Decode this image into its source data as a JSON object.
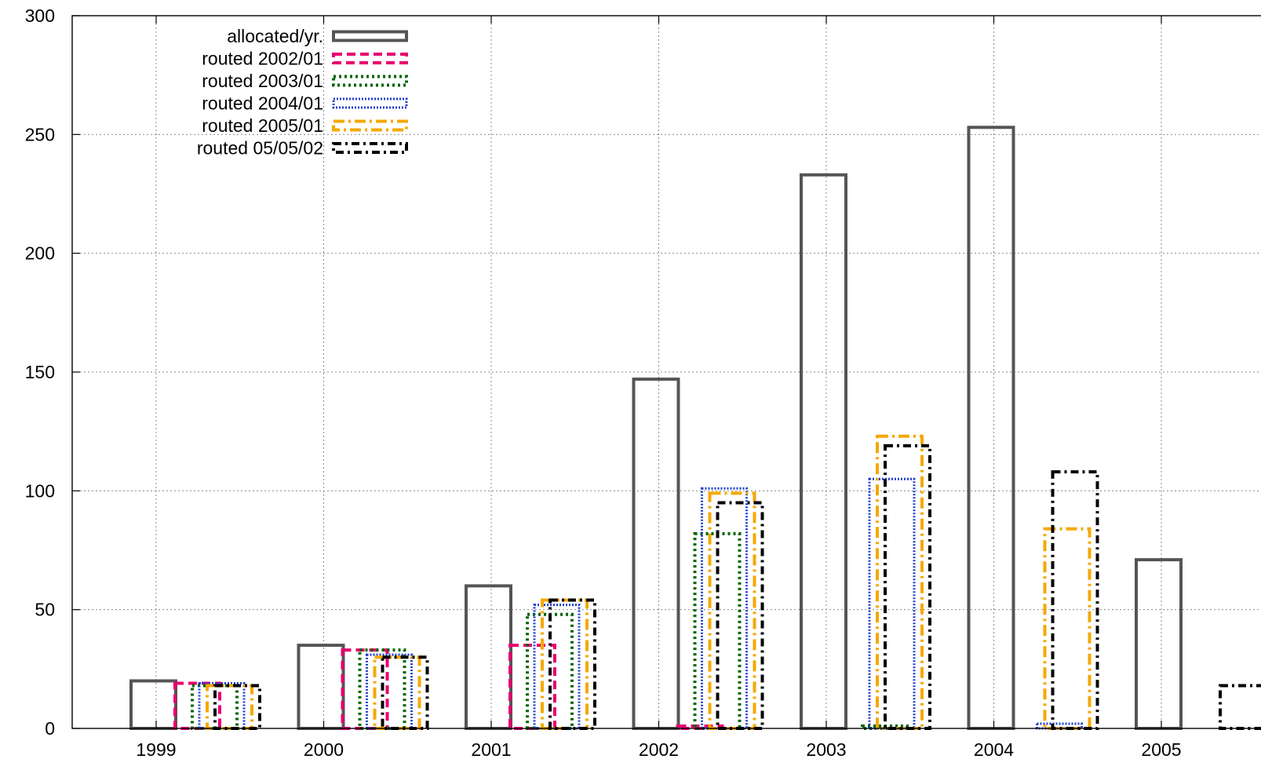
{
  "chart_data": {
    "type": "bar",
    "title": "",
    "xlabel": "",
    "ylabel": "",
    "ylim": [
      0,
      300
    ],
    "yticks": [
      "0",
      "50",
      "100",
      "150",
      "200",
      "250",
      "300"
    ],
    "categories": [
      "1999",
      "2000",
      "2001",
      "2002",
      "2003",
      "2004",
      "2005"
    ],
    "grid": true,
    "legend_position": "top-left",
    "series": [
      {
        "name": "allocated/yr.",
        "color": "#555555",
        "dash": "solid",
        "values": [
          20,
          35,
          60,
          147,
          233,
          253,
          71
        ]
      },
      {
        "name": "routed 2002/01",
        "color": "#e8006f",
        "dash": "dash",
        "values": [
          19,
          33,
          35,
          1,
          0,
          0,
          0
        ]
      },
      {
        "name": "routed 2003/01",
        "color": "#006400",
        "dash": "dot",
        "values": [
          18,
          33,
          48,
          82,
          1,
          0,
          0
        ]
      },
      {
        "name": "routed 2004/01",
        "color": "#1f3fcf",
        "dash": "fine-dot",
        "values": [
          19,
          31,
          52,
          101,
          105,
          2,
          0
        ]
      },
      {
        "name": "routed 2005/01",
        "color": "#f5a800",
        "dash": "dash-dot",
        "values": [
          18,
          30,
          54,
          99,
          123,
          84,
          0
        ]
      },
      {
        "name": "routed 05/05/02",
        "color": "#000000",
        "dash": "dash-dot-black",
        "values": [
          18,
          30,
          54,
          95,
          119,
          108,
          18
        ]
      }
    ]
  }
}
